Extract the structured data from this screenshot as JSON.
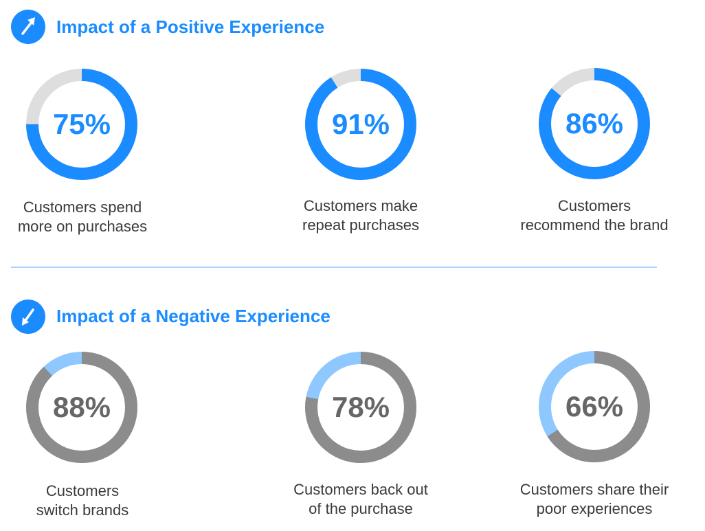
{
  "colors": {
    "accent": "#1a8cff",
    "light_accent": "#8ec8ff",
    "track_light": "#dedede",
    "track_dark": "#8c8c8c",
    "text_blue": "#1a8cff",
    "text_gray": "#666666"
  },
  "sections": [
    {
      "title": "Impact of a Positive Experience",
      "icon": "arrow-up-right-icon"
    },
    {
      "title": "Impact of a Negative Experience",
      "icon": "arrow-down-left-icon"
    }
  ],
  "chart_data": [
    {
      "type": "pie",
      "style": "donut",
      "value": 75,
      "label": "75%",
      "caption": [
        "Customers spend",
        "more on purchases"
      ]
    },
    {
      "type": "pie",
      "style": "donut",
      "value": 91,
      "label": "91%",
      "caption": [
        "Customers make",
        "repeat purchases"
      ]
    },
    {
      "type": "pie",
      "style": "donut",
      "value": 86,
      "label": "86%",
      "caption": [
        "Customers",
        "recommend the brand"
      ]
    },
    {
      "type": "pie",
      "style": "donut",
      "value": 88,
      "label": "88%",
      "caption": [
        "Customers",
        "switch brands"
      ]
    },
    {
      "type": "pie",
      "style": "donut",
      "value": 78,
      "label": "78%",
      "caption": [
        "Customers back out",
        "of the purchase"
      ]
    },
    {
      "type": "pie",
      "style": "donut",
      "value": 66,
      "label": "66%",
      "caption": [
        "Customers share their",
        "poor experiences"
      ]
    }
  ]
}
